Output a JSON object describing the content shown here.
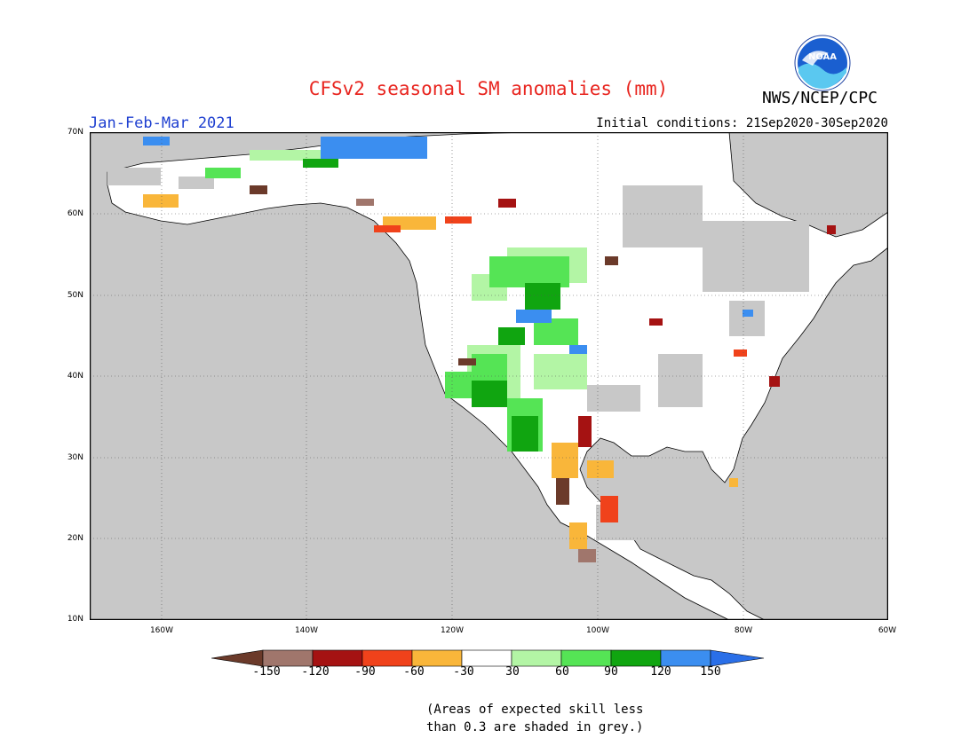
{
  "header": {
    "title": "CFSv2 seasonal SM anomalies (mm)",
    "period": "Jan-Feb-Mar 2021",
    "initial_conditions": "Initial conditions: 21Sep2020-30Sep2020",
    "agency": "NWS/NCEP/CPC",
    "logo_text": "NOAA"
  },
  "map": {
    "lat_labels": [
      "70N",
      "60N",
      "50N",
      "40N",
      "30N",
      "20N",
      "10N"
    ],
    "lon_labels": [
      "160W",
      "140W",
      "120W",
      "100W",
      "80W",
      "60W"
    ],
    "land_color": "#ffffff",
    "ocean_color": "#c8c8c8",
    "low_skill_color": "#c8c8c8"
  },
  "legend": {
    "tick_labels": [
      "-150",
      "-120",
      "-90",
      "-60",
      "-30",
      "30",
      "60",
      "90",
      "120",
      "150"
    ],
    "colors": [
      "#6b3a2a",
      "#a0766c",
      "#a51212",
      "#f0421b",
      "#f9b63a",
      "#ffffff",
      "#b3f5a5",
      "#55e455",
      "#10a510",
      "#3b8ef0",
      "#2a6fe8"
    ]
  },
  "footnote": {
    "line1": "(Areas of expected skill less",
    "line2": "than 0.3 are shaded in grey.)"
  }
}
